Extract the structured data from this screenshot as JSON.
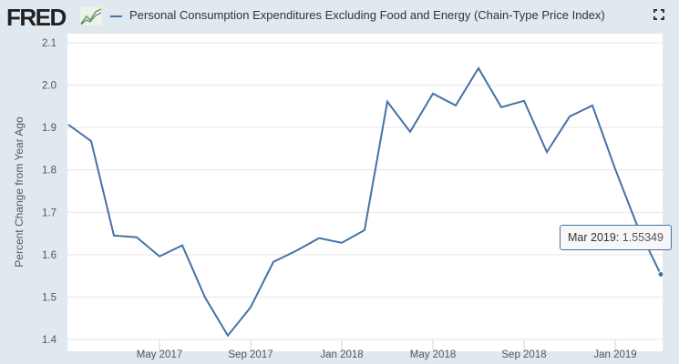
{
  "header": {
    "logo": "FRED",
    "series_title": "Personal Consumption Expenditures Excluding Food and Energy (Chain-Type Price Index)"
  },
  "tooltip": {
    "label": "Mar 2019:",
    "value": "1.55349"
  },
  "colors": {
    "series": "#4572a7",
    "background": "#e1e9f0"
  },
  "chart_data": {
    "type": "line",
    "title": "Personal Consumption Expenditures Excluding Food and Energy (Chain-Type Price Index)",
    "ylabel": "Percent Change from Year Ago",
    "xlabel": "",
    "ylim": [
      1.4,
      2.1
    ],
    "yticks": [
      "1.4",
      "1.5",
      "1.6",
      "1.7",
      "1.8",
      "1.9",
      "2.0",
      "2.1"
    ],
    "xticks": [
      {
        "label": "May 2017",
        "i": 4
      },
      {
        "label": "Sep 2017",
        "i": 8
      },
      {
        "label": "Jan 2018",
        "i": 12
      },
      {
        "label": "May 2018",
        "i": 16
      },
      {
        "label": "Sep 2018",
        "i": 20
      },
      {
        "label": "Jan 2019",
        "i": 24
      }
    ],
    "x": [
      "2017-01",
      "2017-02",
      "2017-03",
      "2017-04",
      "2017-05",
      "2017-06",
      "2017-07",
      "2017-08",
      "2017-09",
      "2017-10",
      "2017-11",
      "2017-12",
      "2018-01",
      "2018-02",
      "2018-03",
      "2018-04",
      "2018-05",
      "2018-06",
      "2018-07",
      "2018-08",
      "2018-09",
      "2018-10",
      "2018-11",
      "2018-12",
      "2019-01",
      "2019-02",
      "2019-03"
    ],
    "series": [
      {
        "name": "Personal Consumption Expenditures Excluding Food and Energy (Chain-Type Price Index)",
        "values": [
          1.907,
          1.868,
          1.645,
          1.641,
          1.596,
          1.622,
          1.499,
          1.409,
          1.476,
          1.583,
          1.609,
          1.639,
          1.628,
          1.658,
          1.961,
          1.89,
          1.98,
          1.952,
          2.04,
          1.948,
          1.963,
          1.842,
          1.926,
          1.952,
          1.802,
          1.664,
          1.55349
        ]
      }
    ],
    "grid": true,
    "legend": "top"
  }
}
